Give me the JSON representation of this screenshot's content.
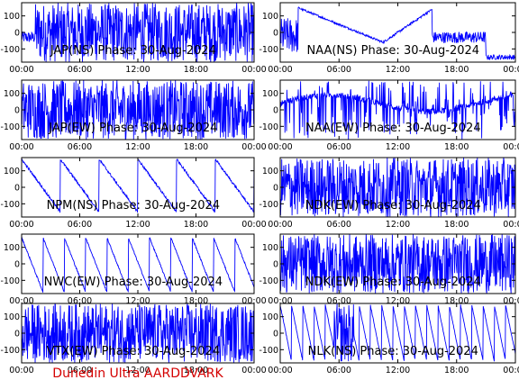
{
  "credit": "Dunedin Ultra AARDDVARK",
  "colors": {
    "trace": "#0000ff",
    "credit": "#d40000",
    "axis": "#000000"
  },
  "chart_data": [
    {
      "type": "line",
      "title": "JAP(NS) Phase: 30-Aug-2024",
      "ylim": [
        -180,
        180
      ],
      "yticks": [
        "100",
        "0",
        "-100"
      ],
      "xticks": [
        "00:00",
        "06:00",
        "12:00",
        "18:00",
        "00:00"
      ],
      "x_hours": [
        0,
        24
      ],
      "pattern": "flat-then-dense",
      "params": [
        0.0,
        0.12,
        0.0
      ]
    },
    {
      "type": "line",
      "title": "NAA(NS) Phase: 30-Aug-2024",
      "ylim": [
        -180,
        180
      ],
      "yticks": [
        "100",
        "0",
        "-100"
      ],
      "xticks": [
        "00:00",
        "06:00",
        "12:00",
        "18:00",
        "00:00"
      ],
      "x_hours": [
        0,
        24
      ],
      "pattern": "vshape",
      "params": [
        -40,
        150,
        -160
      ]
    },
    {
      "type": "line",
      "title": "JAP(EW) Phase: 30-Aug-2024",
      "ylim": [
        -180,
        180
      ],
      "yticks": [
        "100",
        "0",
        "-100"
      ],
      "xticks": [
        "00:00",
        "06:00",
        "12:00",
        "18:00",
        "00:00"
      ],
      "x_hours": [
        0,
        24
      ],
      "pattern": "dense",
      "params": [
        0,
        0,
        0
      ]
    },
    {
      "type": "line",
      "title": "NAA(EW) Phase: 30-Aug-2024",
      "ylim": [
        -180,
        180
      ],
      "yticks": [
        "100",
        "0",
        "-100"
      ],
      "xticks": [
        "00:00",
        "06:00",
        "12:00",
        "18:00",
        "00:00"
      ],
      "x_hours": [
        0,
        24
      ],
      "pattern": "curve-dense",
      "params": [
        60,
        20,
        30
      ]
    },
    {
      "type": "line",
      "title": "NPM(NS) Phase: 30-Aug-2024",
      "ylim": [
        -180,
        180
      ],
      "yticks": [
        "100",
        "0",
        "-100"
      ],
      "xticks": [
        "00:00",
        "06:00",
        "12:00",
        "18:00",
        "00:00"
      ],
      "x_hours": [
        0,
        24
      ],
      "pattern": "sawtooth-slow",
      "params": [
        170,
        150,
        4
      ]
    },
    {
      "type": "line",
      "title": "NDK(EW) Phase: 30-Aug-2024",
      "ylim": [
        -180,
        180
      ],
      "yticks": [
        "100",
        "0",
        "-100"
      ],
      "xticks": [
        "00:00",
        "06:00",
        "12:00",
        "18:00",
        "00:00"
      ],
      "x_hours": [
        0,
        24
      ],
      "pattern": "dense",
      "params": [
        0,
        0,
        0
      ]
    },
    {
      "type": "line",
      "title": "NWC(EW) Phase: 30-Aug-2024",
      "ylim": [
        -180,
        180
      ],
      "yticks": [
        "100",
        "0",
        "-100"
      ],
      "xticks": [
        "00:00",
        "06:00",
        "12:00",
        "18:00",
        "00:00"
      ],
      "x_hours": [
        0,
        24
      ],
      "pattern": "sawtooth",
      "params": [
        160,
        -170,
        2.2
      ]
    },
    {
      "type": "line",
      "title": "NDK(EW) Phase: 30-Aug-2024",
      "ylim": [
        -180,
        180
      ],
      "yticks": [
        "100",
        "0",
        "-100"
      ],
      "xticks": [
        "00:00",
        "06:00",
        "12:00",
        "18:00",
        "00:00"
      ],
      "x_hours": [
        0,
        24
      ],
      "pattern": "dense",
      "params": [
        0,
        0,
        0
      ]
    },
    {
      "type": "line",
      "title": "VTX(EW) Phase: 30-Aug-2024",
      "ylim": [
        -180,
        180
      ],
      "yticks": [
        "100",
        "0",
        "-100"
      ],
      "xticks": [
        "00:00",
        "06:00",
        "12:00",
        "18:00",
        "00:00"
      ],
      "x_hours": [
        0,
        24
      ],
      "pattern": "dense",
      "params": [
        0,
        0,
        0
      ]
    },
    {
      "type": "line",
      "title": "NLK(NS) Phase: 30-Aug-2024",
      "ylim": [
        -180,
        180
      ],
      "yticks": [
        "100",
        "0",
        "-100"
      ],
      "xticks": [
        "00:00",
        "06:00",
        "12:00",
        "18:00",
        "00:00"
      ],
      "x_hours": [
        0,
        24
      ],
      "pattern": "sawtooth-fast",
      "params": [
        170,
        -170,
        1.15
      ]
    }
  ]
}
